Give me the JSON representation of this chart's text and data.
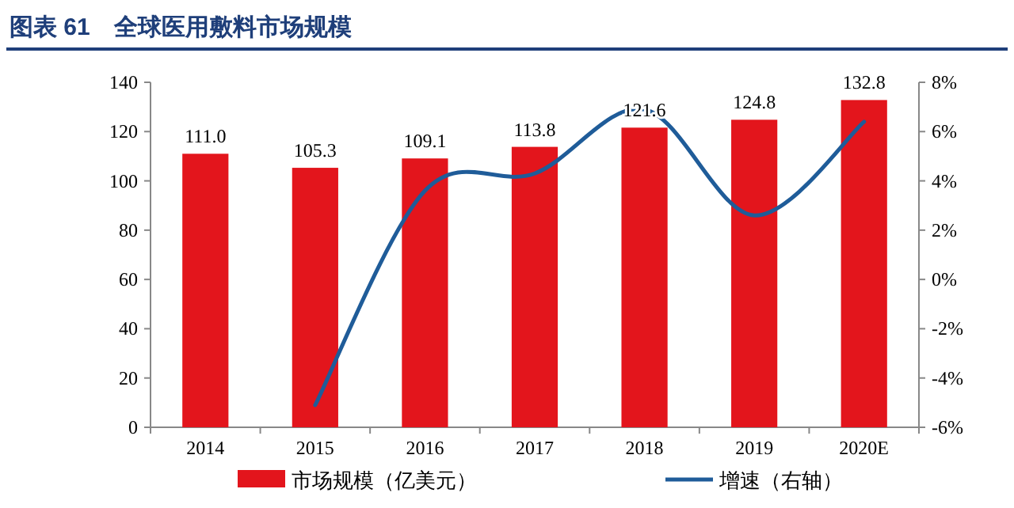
{
  "chart_data": {
    "type": "bar",
    "title": "图表 61　全球医用敷料市场规模",
    "categories": [
      "2014",
      "2015",
      "2016",
      "2017",
      "2018",
      "2019",
      "2020E"
    ],
    "series": [
      {
        "name": "市场规模（亿美元）",
        "color": "#e3151c",
        "values": [
          111.0,
          105.3,
          109.1,
          113.8,
          121.6,
          124.8,
          132.8
        ],
        "value_labels": [
          "111.0",
          "105.3",
          "109.1",
          "113.8",
          "121.6",
          "124.8",
          "132.8"
        ]
      },
      {
        "name": "增速（右轴）",
        "type": "line",
        "axis": "y2",
        "color": "#1f5c99",
        "values": [
          null,
          -5.1,
          3.6,
          4.3,
          6.9,
          2.6,
          6.4
        ]
      }
    ],
    "ylim": [
      0,
      140
    ],
    "yticks": [
      0,
      20,
      40,
      60,
      80,
      100,
      120,
      140
    ],
    "y2lim": [
      -6,
      8
    ],
    "y2ticks": [
      {
        "value": -6,
        "label": "-6%"
      },
      {
        "value": -4,
        "label": "-4%"
      },
      {
        "value": -2,
        "label": "-2%"
      },
      {
        "value": 0,
        "label": "0%"
      },
      {
        "value": 2,
        "label": "2%"
      },
      {
        "value": 4,
        "label": "4%"
      },
      {
        "value": 6,
        "label": "6%"
      },
      {
        "value": 8,
        "label": "8%"
      }
    ],
    "legend": "bottom",
    "grid": false
  }
}
